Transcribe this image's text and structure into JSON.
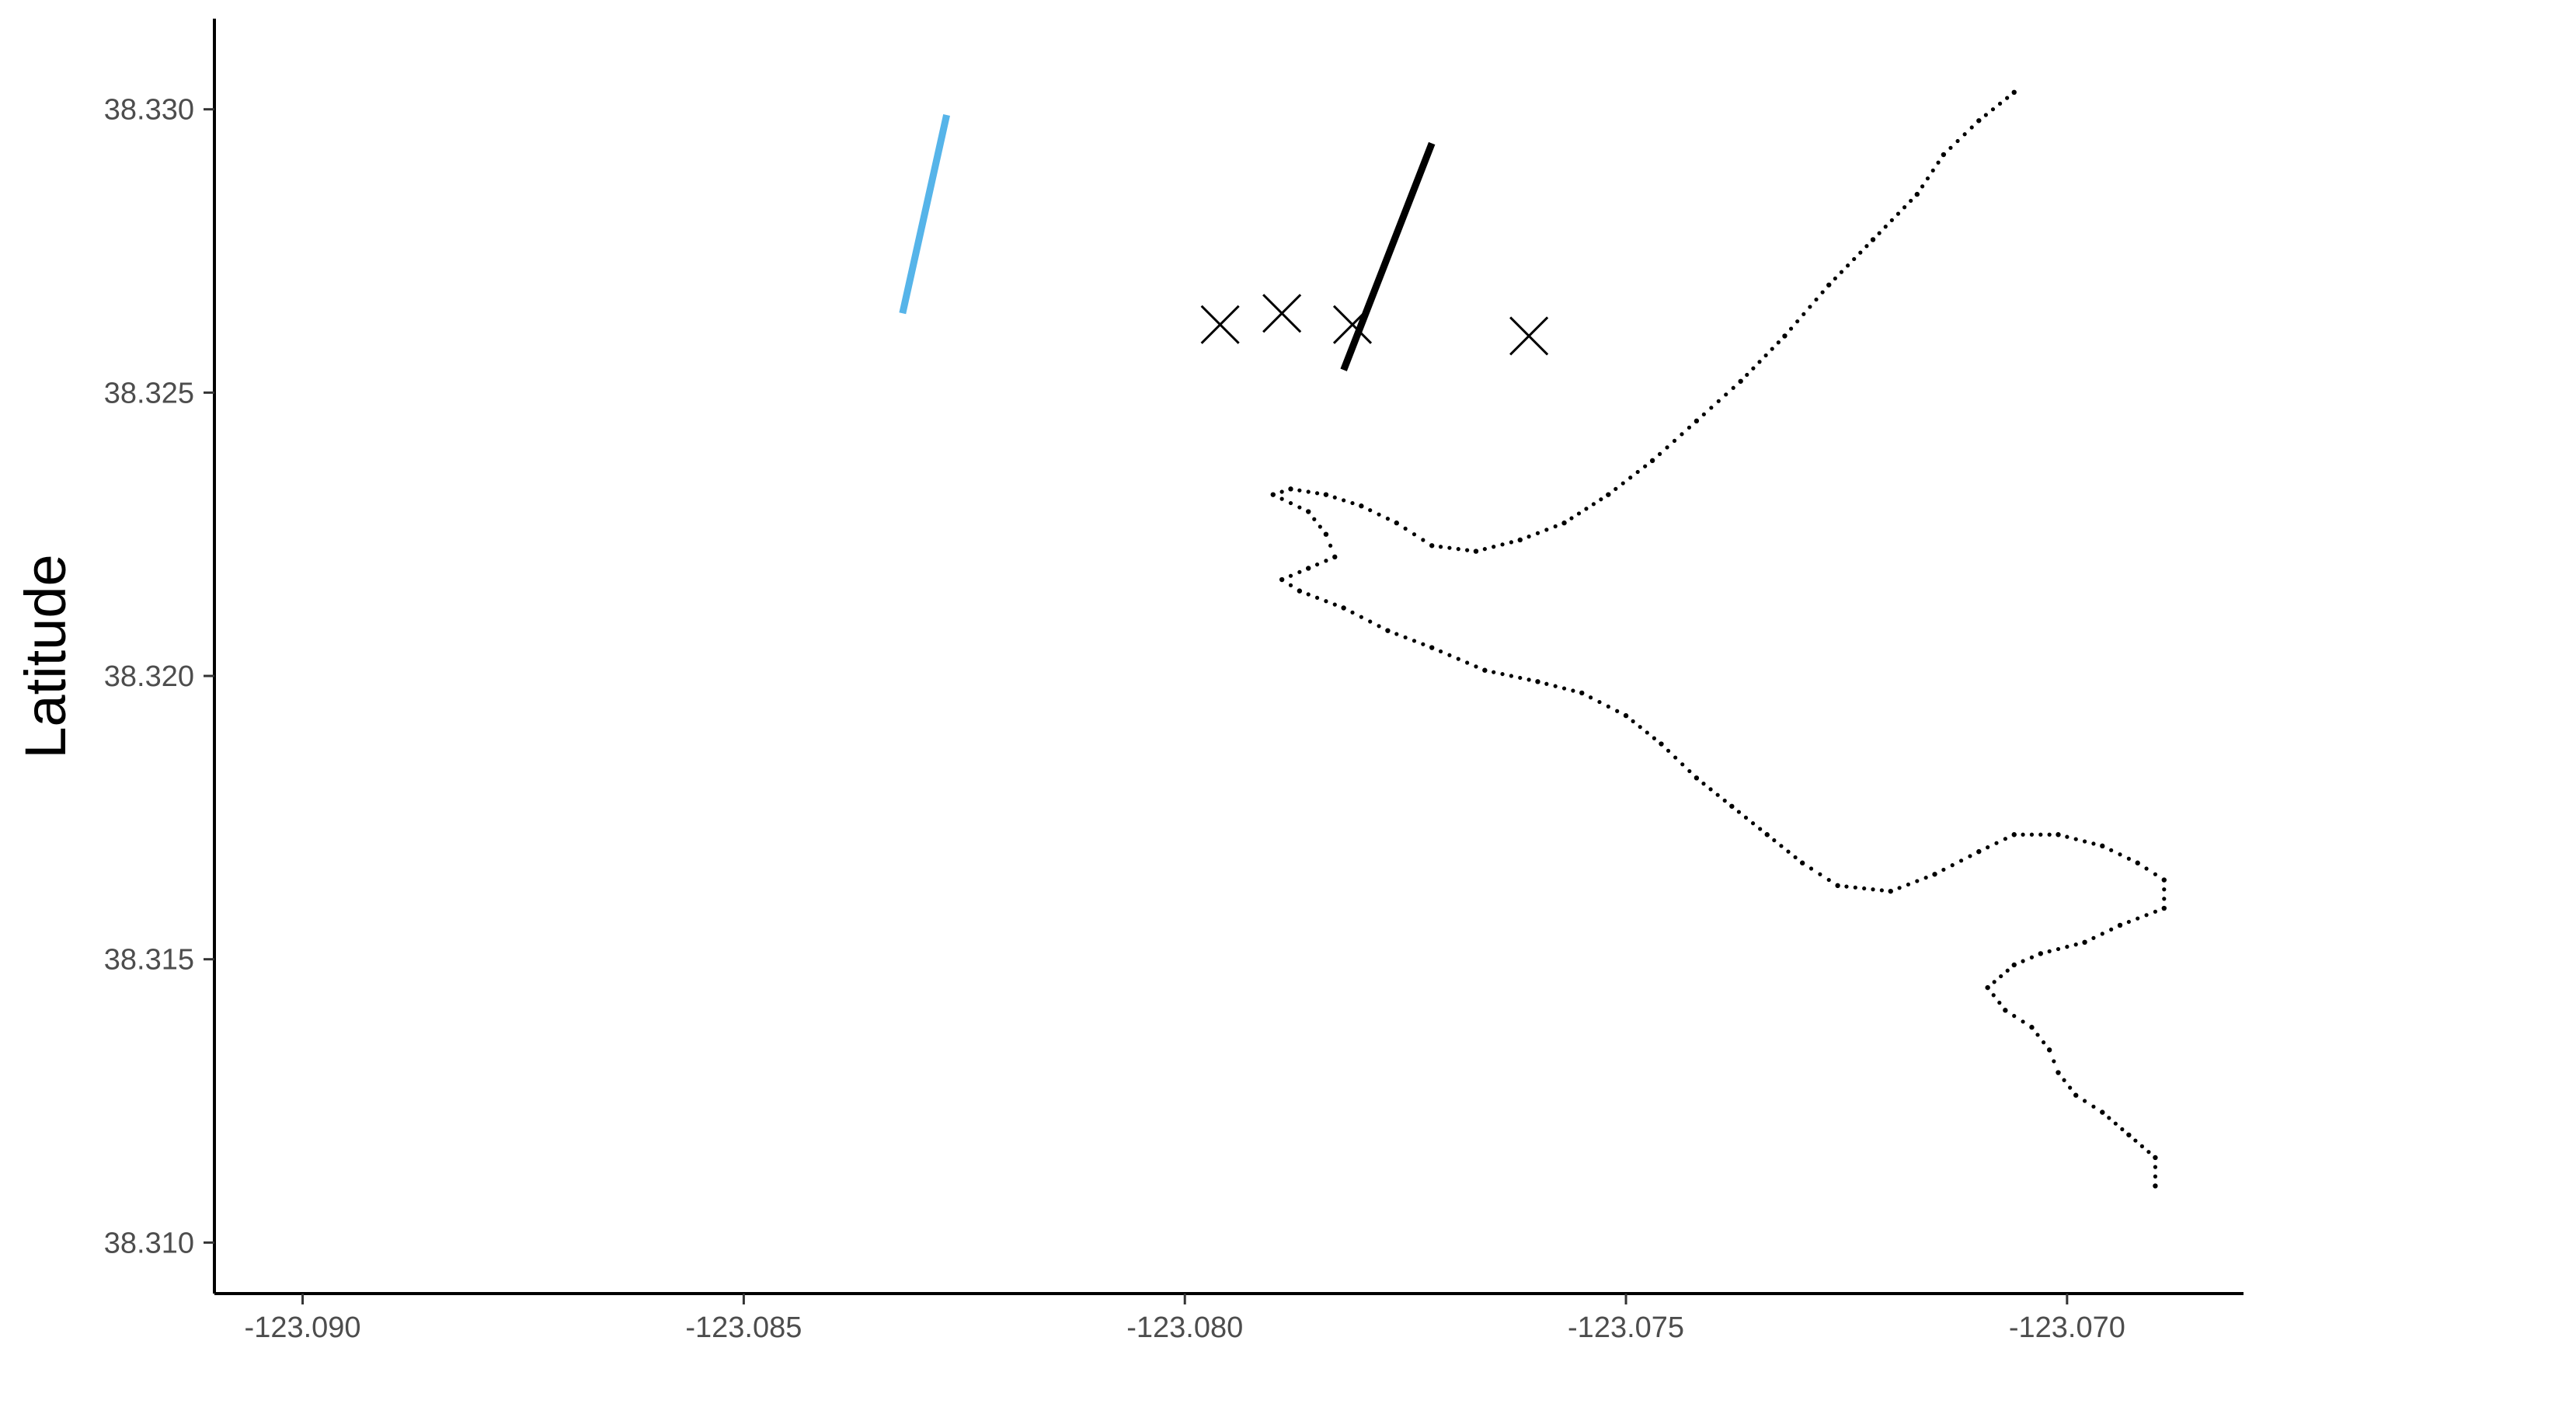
{
  "chart_data": {
    "type": "scatter",
    "title": "",
    "xlabel": "",
    "ylabel": "Latitude",
    "xlim": [
      -123.091,
      -123.068
    ],
    "ylim": [
      38.3091,
      38.3316
    ],
    "xticks": [
      -123.09,
      -123.085,
      -123.08,
      -123.075,
      -123.07
    ],
    "xtick_labels": [
      "-123.090",
      "-123.085",
      "-123.080",
      "-123.075",
      "-123.070"
    ],
    "yticks": [
      38.31,
      38.315,
      38.32,
      38.325,
      38.33
    ],
    "ytick_labels": [
      "38.310",
      "38.315",
      "38.320",
      "38.325",
      "38.330"
    ],
    "grid": false,
    "legend": "none",
    "colors": {
      "blue_track": "#56B4E9",
      "black_track": "#000000",
      "markers": "#000000",
      "axis": "#000000"
    },
    "tracks": [
      {
        "color": "#56B4E9",
        "points": [
          [
            -123.0832,
            38.3264
          ],
          [
            -123.0827,
            38.3299
          ]
        ]
      },
      {
        "color": "#000000",
        "points": [
          [
            -123.0782,
            38.3254
          ],
          [
            -123.0772,
            38.3294
          ]
        ]
      }
    ],
    "x_markers": [
      [
        -123.0796,
        38.3262
      ],
      [
        -123.0789,
        38.3264
      ],
      [
        -123.0781,
        38.3262
      ],
      [
        -123.0761,
        38.326
      ]
    ],
    "coastline_points": [
      [
        -123.0706,
        38.3303
      ],
      [
        -123.071,
        38.3298
      ],
      [
        -123.0714,
        38.3292
      ],
      [
        -123.0717,
        38.3285
      ],
      [
        -123.0722,
        38.3277
      ],
      [
        -123.0727,
        38.3269
      ],
      [
        -123.0732,
        38.326
      ],
      [
        -123.0737,
        38.3252
      ],
      [
        -123.0742,
        38.3245
      ],
      [
        -123.0747,
        38.3238
      ],
      [
        -123.0752,
        38.3232
      ],
      [
        -123.0757,
        38.3227
      ],
      [
        -123.0762,
        38.3224
      ],
      [
        -123.0767,
        38.3222
      ],
      [
        -123.0772,
        38.3223
      ],
      [
        -123.0776,
        38.3227
      ],
      [
        -123.078,
        38.323
      ],
      [
        -123.0784,
        38.3232
      ],
      [
        -123.0788,
        38.3233
      ],
      [
        -123.079,
        38.3232
      ],
      [
        -123.0786,
        38.3229
      ],
      [
        -123.0784,
        38.3225
      ],
      [
        -123.0783,
        38.3221
      ],
      [
        -123.0786,
        38.3219
      ],
      [
        -123.0789,
        38.3217
      ],
      [
        -123.0787,
        38.3215
      ],
      [
        -123.0782,
        38.3212
      ],
      [
        -123.0777,
        38.3208
      ],
      [
        -123.0772,
        38.3205
      ],
      [
        -123.0766,
        38.3201
      ],
      [
        -123.076,
        38.3199
      ],
      [
        -123.0755,
        38.3197
      ],
      [
        -123.075,
        38.3193
      ],
      [
        -123.0746,
        38.3188
      ],
      [
        -123.0742,
        38.3182
      ],
      [
        -123.0738,
        38.3177
      ],
      [
        -123.0734,
        38.3172
      ],
      [
        -123.073,
        38.3167
      ],
      [
        -123.0726,
        38.3163
      ],
      [
        -123.072,
        38.3162
      ],
      [
        -123.0715,
        38.3165
      ],
      [
        -123.071,
        38.3169
      ],
      [
        -123.0706,
        38.3172
      ],
      [
        -123.0701,
        38.3172
      ],
      [
        -123.0696,
        38.317
      ],
      [
        -123.0692,
        38.3167
      ],
      [
        -123.0689,
        38.3164
      ],
      [
        -123.0689,
        38.3159
      ],
      [
        -123.0694,
        38.3156
      ],
      [
        -123.0698,
        38.3153
      ],
      [
        -123.0703,
        38.3151
      ],
      [
        -123.0706,
        38.3149
      ],
      [
        -123.0709,
        38.3145
      ],
      [
        -123.0707,
        38.3141
      ],
      [
        -123.0704,
        38.3138
      ],
      [
        -123.0702,
        38.3134
      ],
      [
        -123.0701,
        38.313
      ],
      [
        -123.0699,
        38.3126
      ],
      [
        -123.0696,
        38.3123
      ],
      [
        -123.0693,
        38.3119
      ],
      [
        -123.069,
        38.3115
      ],
      [
        -123.069,
        38.311
      ]
    ]
  }
}
